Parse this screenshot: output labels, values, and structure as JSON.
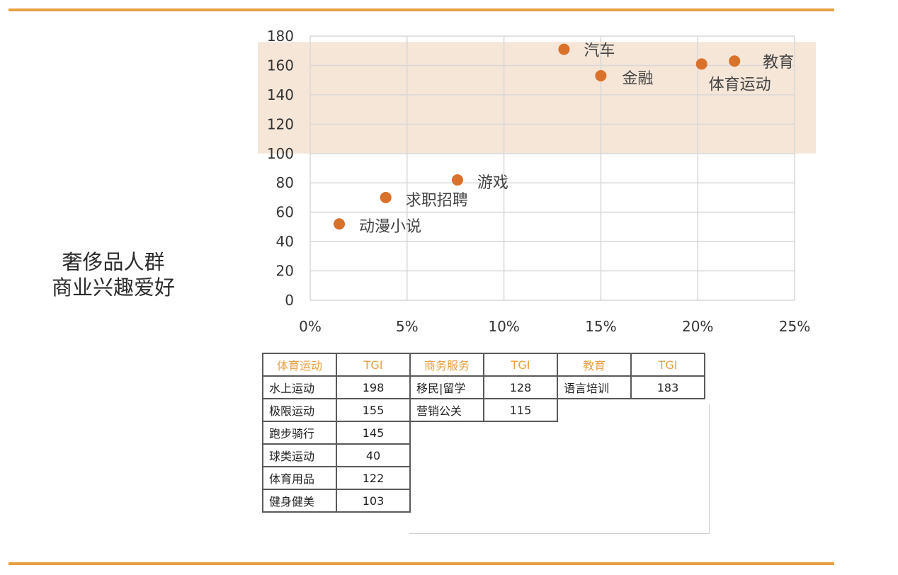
{
  "side_title": {
    "line1": "奢侈品人群",
    "line2": "商业兴趣爱好"
  },
  "colors": {
    "accent_rule": "#e8a040",
    "highlight_band": "#f6e6d7",
    "point": "#d9712a",
    "header_text": "#e8a040",
    "grid": "#d8d8d8"
  },
  "chart_data": {
    "type": "scatter",
    "title": "",
    "xlabel": "",
    "ylabel": "",
    "xlim": [
      0,
      25
    ],
    "ylim": [
      0,
      180
    ],
    "x_ticks": [
      "0%",
      "5%",
      "10%",
      "15%",
      "20%",
      "25%"
    ],
    "y_ticks": [
      "0",
      "20",
      "40",
      "60",
      "80",
      "100",
      "120",
      "140",
      "160",
      "180"
    ],
    "grid": true,
    "highlight_band": {
      "y_from": 100,
      "y_to": 176
    },
    "points": [
      {
        "label": "汽车",
        "x": 13.1,
        "y": 171
      },
      {
        "label": "金融",
        "x": 15.0,
        "y": 153
      },
      {
        "label": "体育运动",
        "x": 20.2,
        "y": 161
      },
      {
        "label": "教育",
        "x": 21.9,
        "y": 163
      },
      {
        "label": "游戏",
        "x": 7.6,
        "y": 82
      },
      {
        "label": "求职招聘",
        "x": 3.9,
        "y": 70
      },
      {
        "label": "动漫小说",
        "x": 1.5,
        "y": 52
      }
    ]
  },
  "tgi_table": {
    "headers": [
      "体育运动",
      "TGI",
      "商务服务",
      "TGI",
      "教育",
      "TGI"
    ],
    "rows": [
      [
        "水上运动",
        "198",
        "移民|留学",
        "128",
        "语言培训",
        "183"
      ],
      [
        "极限运动",
        "155",
        "营销公关",
        "115",
        "",
        ""
      ],
      [
        "跑步骑行",
        "145",
        "",
        "",
        "",
        ""
      ],
      [
        "球类运动",
        "40",
        "",
        "",
        "",
        ""
      ],
      [
        "体育用品",
        "122",
        "",
        "",
        "",
        ""
      ],
      [
        "健身健美",
        "103",
        "",
        "",
        "",
        ""
      ]
    ]
  }
}
